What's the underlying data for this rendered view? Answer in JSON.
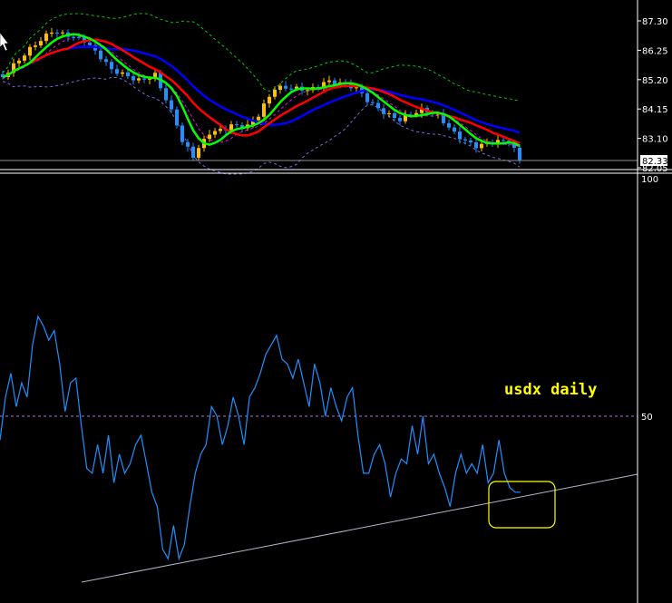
{
  "chart_data": [
    {
      "type": "candlestick",
      "symbol": "usdx",
      "timeframe": "daily",
      "y_ticks": [
        "87.30",
        "86.25",
        "85.20",
        "84.15",
        "83.10",
        "82.05"
      ],
      "ylim": [
        82.05,
        87.3
      ],
      "current_price": "82.33",
      "close_anchors": {
        "bar": [
          0,
          3,
          7,
          9,
          12,
          15,
          17,
          20,
          25,
          28,
          30,
          32,
          33,
          35,
          37,
          38,
          42,
          45,
          47,
          49,
          50,
          53,
          57,
          59,
          62,
          65,
          67,
          70,
          73,
          77,
          80,
          83,
          87,
          90,
          93,
          95
        ],
        "close": [
          85.29,
          85.78,
          86.59,
          87.01,
          86.91,
          86.59,
          86.1,
          85.45,
          85.29,
          85.45,
          84.48,
          83.51,
          82.86,
          82.37,
          83.02,
          83.35,
          83.67,
          83.51,
          83.83,
          84.48,
          84.8,
          84.97,
          84.97,
          85.13,
          84.97,
          84.8,
          84.48,
          84.16,
          83.83,
          84.0,
          83.83,
          83.35,
          82.92,
          82.92,
          82.86,
          82.33
        ]
      },
      "overlays": [
        {
          "kind": "fast MA",
          "color": "#00ff00"
        },
        {
          "kind": "medium MA",
          "color": "#ff0000"
        },
        {
          "kind": "slow MA",
          "color": "#0000ff"
        },
        {
          "kind": "upper band",
          "color": "#00cc00",
          "style": "dashed"
        },
        {
          "kind": "lower band",
          "color": "#7b68ee",
          "style": "dashed"
        },
        {
          "kind": "envelope",
          "color": "#ff00ff",
          "style": "dashed"
        }
      ],
      "colors": {
        "bull": "#ffc000",
        "bear": "#1e90ff"
      }
    },
    {
      "type": "line",
      "y_ticks": [
        "100",
        "50"
      ],
      "ylim": [
        10,
        100
      ],
      "level": 50,
      "color": "#1e90ff",
      "values": [
        45,
        54,
        59,
        52,
        57,
        54,
        65,
        71,
        69,
        66,
        68,
        61,
        51,
        57,
        58,
        48,
        39,
        38,
        44,
        38,
        46,
        36,
        42,
        38,
        40,
        44,
        46,
        40,
        34,
        31,
        22,
        20,
        27,
        20,
        23,
        31,
        38,
        42,
        44,
        52,
        50,
        44,
        48,
        54,
        50,
        44,
        54,
        56,
        59,
        63,
        65,
        67,
        62,
        61,
        58,
        62,
        57,
        52,
        61,
        57,
        50,
        56,
        52,
        49,
        54,
        56,
        46,
        38,
        38,
        42,
        44,
        40,
        33,
        38,
        41,
        40,
        48,
        42,
        50,
        40,
        42,
        38,
        35,
        31,
        38,
        42,
        38,
        40,
        38,
        44,
        36,
        38,
        45,
        38,
        35,
        34,
        34
      ],
      "trendline": {
        "color": "#b0b8c8"
      },
      "highlight_box": {
        "color": "#ffff00"
      }
    }
  ],
  "annotation": "usdx daily"
}
